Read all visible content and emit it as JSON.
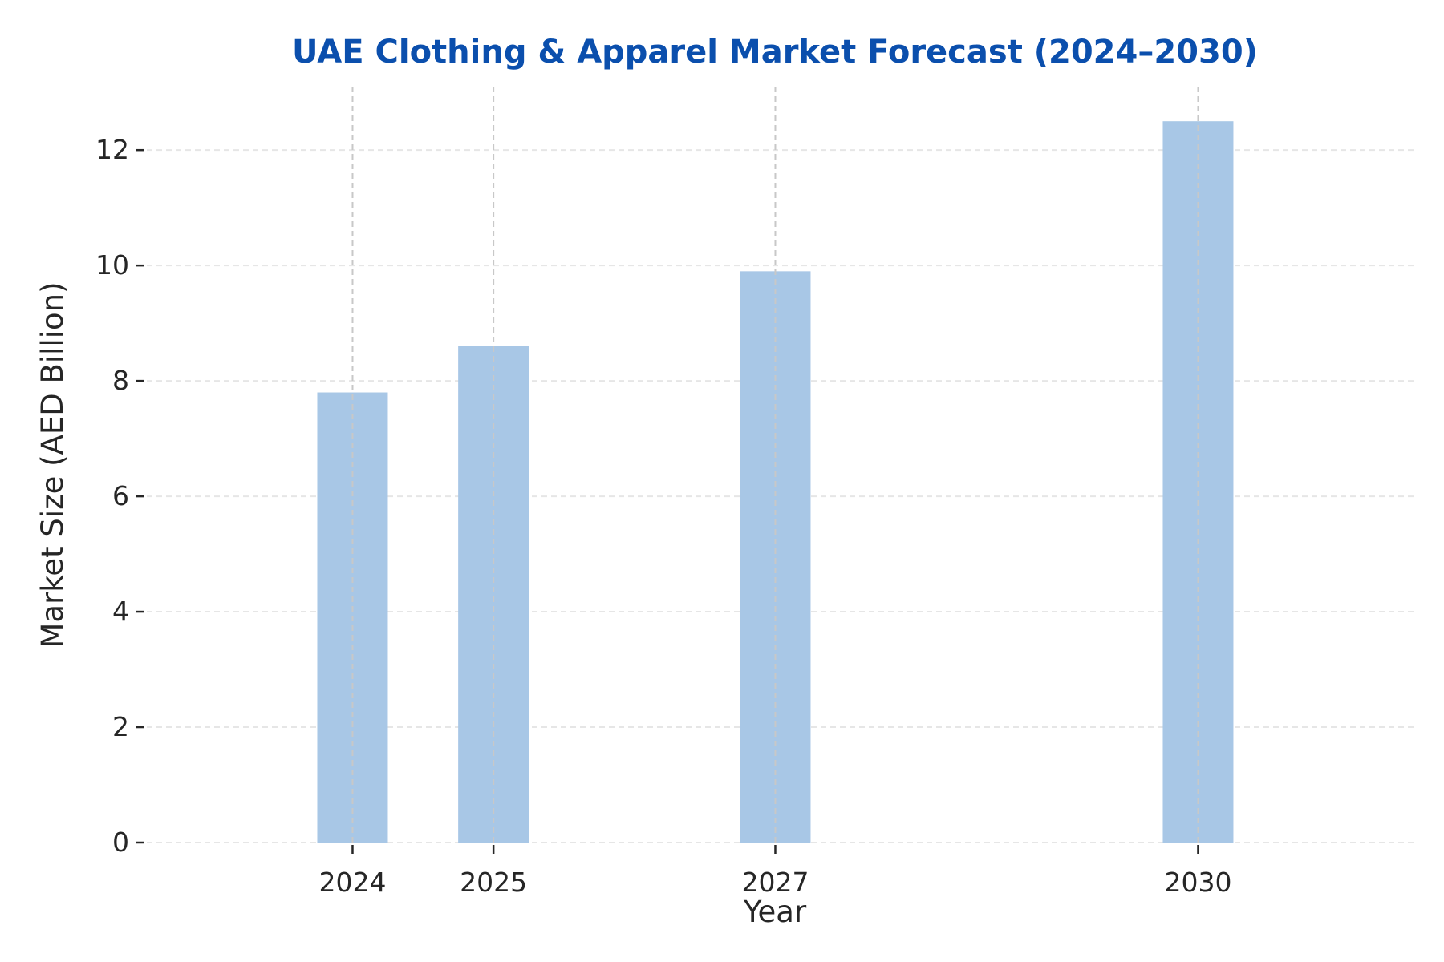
{
  "colors": {
    "title": "#0b4fad",
    "bar": "#a8c7e6",
    "grid": "#e6e6e6",
    "vgrid": "#c8c8c8",
    "tick": "#262626",
    "text": "#262626"
  },
  "chart_data": {
    "type": "bar",
    "title": "UAE Clothing & Apparel Market Forecast (2024–2030)",
    "xlabel": "Year",
    "ylabel": "Market Size (AED Billion)",
    "x": [
      2024,
      2025,
      2027,
      2030
    ],
    "xticks": [
      "2024",
      "2025",
      "2027",
      "2030"
    ],
    "values": [
      7.8,
      8.6,
      9.9,
      12.5
    ],
    "xlim": [
      2022.54,
      2031.54
    ],
    "ylim": [
      0,
      13.1
    ],
    "yticks": [
      0,
      2,
      4,
      6,
      8,
      10,
      12
    ],
    "grid": true
  }
}
